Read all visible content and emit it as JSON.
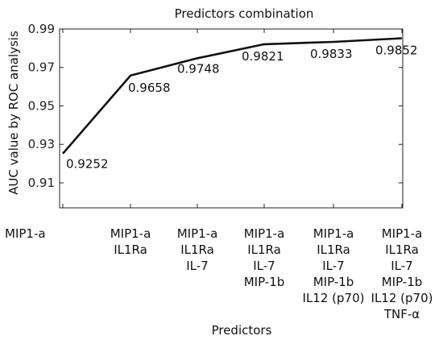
{
  "chart_data": {
    "type": "line",
    "title": "Predictors combination",
    "xlabel": "Predictors",
    "ylabel": "AUC value by ROC analysis",
    "ylim": [
      0.897,
      0.99
    ],
    "yticks": [
      "0.91",
      "0.93",
      "0.95",
      "0.97",
      "0.99"
    ],
    "grid": false,
    "categories": [
      [
        "MIP1-a"
      ],
      [
        "MIP1-a",
        "IL1Ra"
      ],
      [
        "MIP1-a",
        "IL1Ra",
        "IL-7"
      ],
      [
        "MIP1-a",
        "IL1Ra",
        "IL-7",
        "MIP-1b"
      ],
      [
        "MIP1-a",
        "IL1Ra",
        "IL-7",
        "MIP-1b",
        "IL12 (p70)"
      ],
      [
        "MIP1-a",
        "IL1Ra",
        "IL-7",
        "MIP-1b",
        "IL12 (p70)",
        "TNF-α"
      ]
    ],
    "series": [
      {
        "values": [
          0.9252,
          0.9658,
          0.9748,
          0.9821,
          0.9833,
          0.9852
        ],
        "labels": [
          "0.9252",
          "0.9658",
          "0.9748",
          "0.9821",
          "0.9833",
          "0.9852"
        ],
        "color": "#111111"
      }
    ]
  }
}
